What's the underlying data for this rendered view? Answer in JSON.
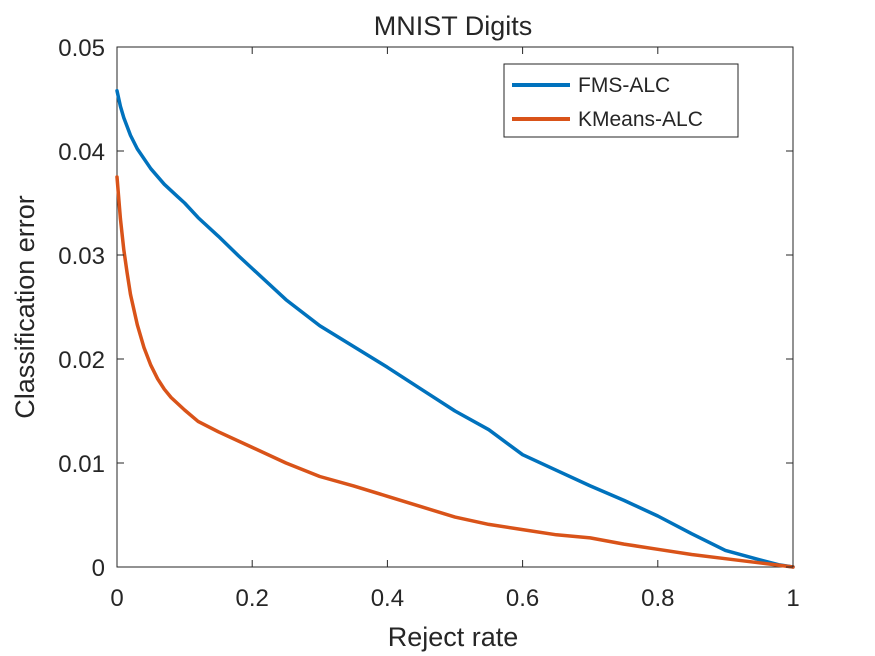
{
  "chart_data": {
    "type": "line",
    "title": "MNIST Digits",
    "xlabel": "Reject rate",
    "ylabel": "Classification error",
    "xlim": [
      0,
      1
    ],
    "ylim": [
      0,
      0.05
    ],
    "xticks": [
      0,
      0.2,
      0.4,
      0.6,
      0.8,
      1
    ],
    "xtick_labels": [
      "0",
      "0.2",
      "0.4",
      "0.6",
      "0.8",
      "1"
    ],
    "yticks": [
      0,
      0.01,
      0.02,
      0.03,
      0.04,
      0.05
    ],
    "ytick_labels": [
      "0",
      "0.01",
      "0.02",
      "0.03",
      "0.04",
      "0.05"
    ],
    "grid": false,
    "legend_position": "top-right",
    "series": [
      {
        "name": "FMS-ALC",
        "color": "#0072bd",
        "x": [
          0,
          0.005,
          0.01,
          0.02,
          0.03,
          0.05,
          0.07,
          0.09,
          0.1,
          0.12,
          0.15,
          0.18,
          0.2,
          0.25,
          0.3,
          0.35,
          0.4,
          0.45,
          0.5,
          0.55,
          0.6,
          0.65,
          0.7,
          0.75,
          0.8,
          0.85,
          0.9,
          0.95,
          0.98,
          1.0
        ],
        "y": [
          0.0458,
          0.0443,
          0.0432,
          0.0415,
          0.0402,
          0.0383,
          0.0368,
          0.0356,
          0.035,
          0.0336,
          0.0318,
          0.0299,
          0.0287,
          0.0257,
          0.0232,
          0.0212,
          0.0192,
          0.0171,
          0.015,
          0.0132,
          0.0108,
          0.0093,
          0.0078,
          0.0064,
          0.0049,
          0.0032,
          0.0016,
          0.0007,
          0.0002,
          0.0
        ]
      },
      {
        "name": "KMeans-ALC",
        "color": "#d95319",
        "x": [
          0,
          0.005,
          0.01,
          0.015,
          0.02,
          0.03,
          0.04,
          0.05,
          0.06,
          0.07,
          0.08,
          0.1,
          0.12,
          0.15,
          0.2,
          0.25,
          0.3,
          0.35,
          0.4,
          0.45,
          0.5,
          0.55,
          0.6,
          0.65,
          0.7,
          0.75,
          0.8,
          0.85,
          0.9,
          0.95,
          1.0
        ],
        "y": [
          0.0375,
          0.0335,
          0.0305,
          0.0283,
          0.0262,
          0.0233,
          0.0211,
          0.0194,
          0.0181,
          0.0171,
          0.0163,
          0.0151,
          0.014,
          0.013,
          0.0115,
          0.01,
          0.0087,
          0.0078,
          0.0068,
          0.0058,
          0.0048,
          0.0041,
          0.0036,
          0.0031,
          0.0028,
          0.0022,
          0.0017,
          0.0012,
          0.0008,
          0.0004,
          0.0
        ]
      }
    ]
  }
}
